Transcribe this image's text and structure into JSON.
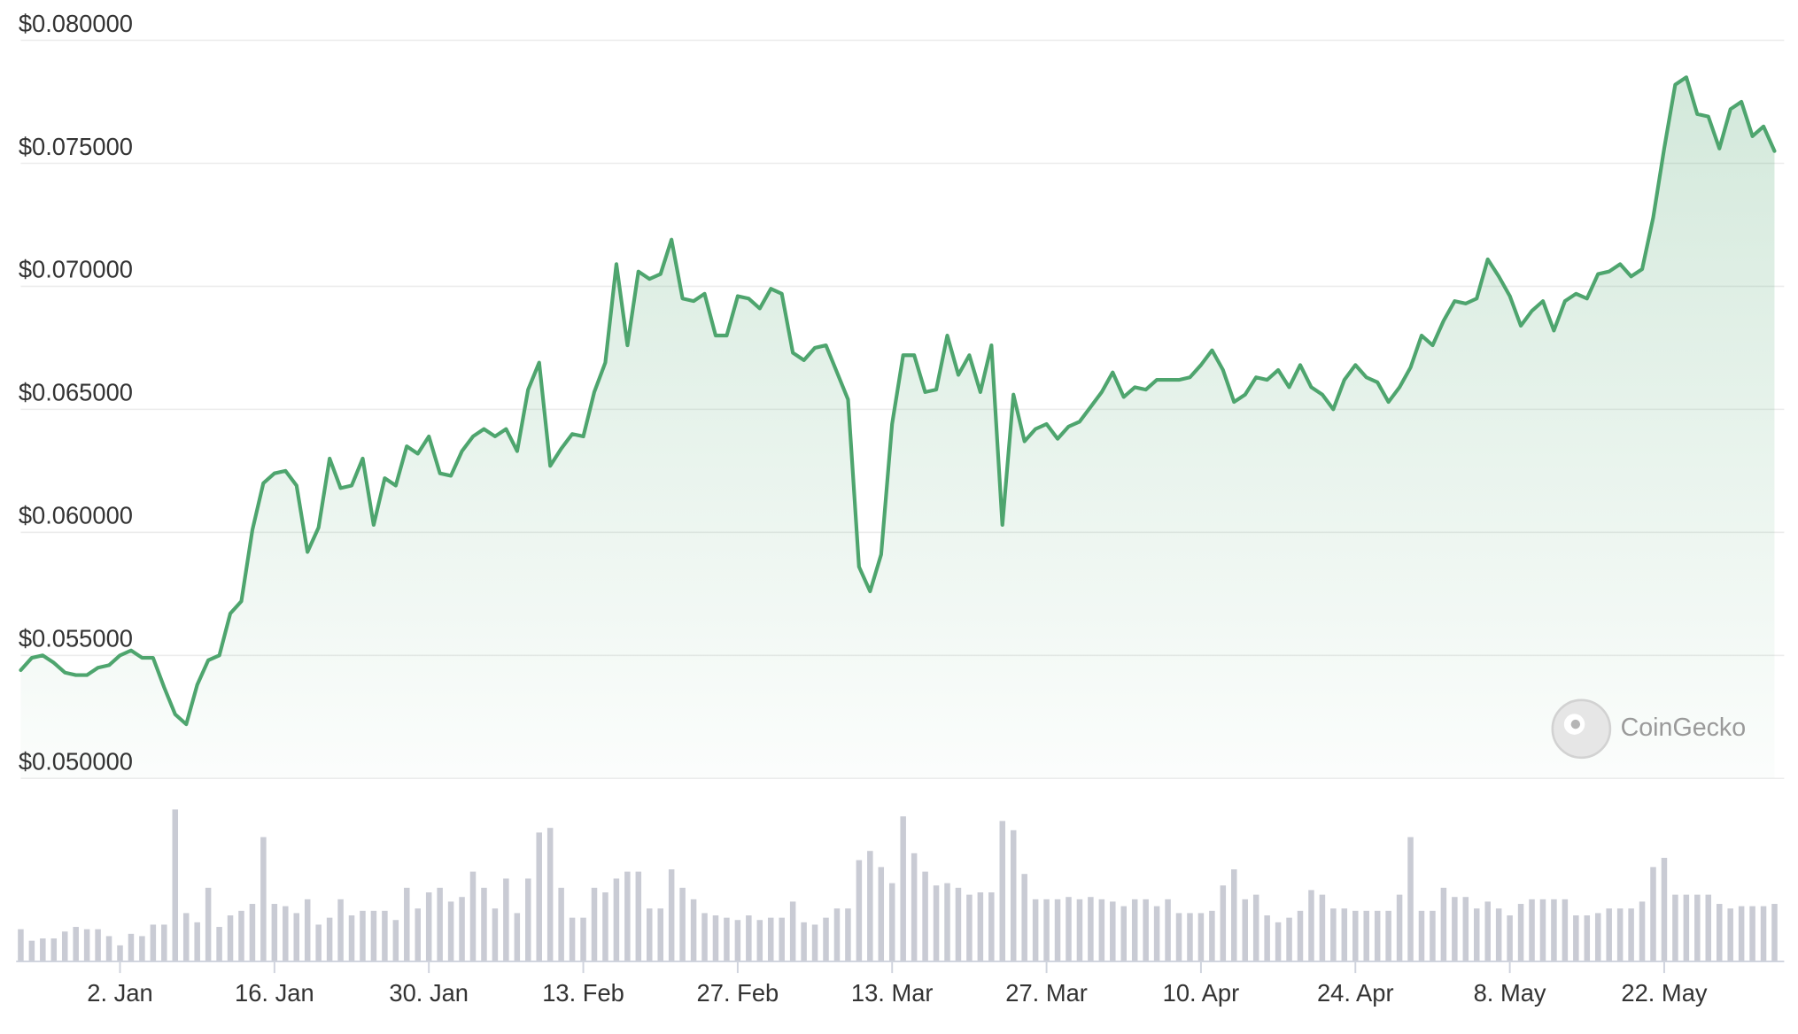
{
  "chart_data": {
    "type": "line",
    "watermark": "CoinGecko",
    "categories": [
      null,
      null,
      null,
      null,
      null,
      null,
      null,
      null,
      null,
      "2. Jan",
      null,
      null,
      null,
      null,
      null,
      null,
      null,
      null,
      null,
      null,
      null,
      null,
      null,
      "16. Jan",
      null,
      null,
      null,
      null,
      null,
      null,
      null,
      null,
      null,
      null,
      null,
      null,
      null,
      "30. Jan",
      null,
      null,
      null,
      null,
      null,
      null,
      null,
      null,
      null,
      null,
      null,
      null,
      null,
      "13. Feb",
      null,
      null,
      null,
      null,
      null,
      null,
      null,
      null,
      null,
      null,
      null,
      null,
      null,
      "27. Feb",
      null,
      null,
      null,
      null,
      null,
      null,
      null,
      null,
      null,
      null,
      null,
      null,
      null,
      "13. Mar",
      null,
      null,
      null,
      null,
      null,
      null,
      null,
      null,
      null,
      null,
      null,
      null,
      null,
      "27. Mar",
      null,
      null,
      null,
      null,
      null,
      null,
      null,
      null,
      null,
      null,
      null,
      null,
      null,
      "10. Apr",
      null,
      null,
      null,
      null,
      null,
      null,
      null,
      null,
      null,
      null,
      null,
      null,
      null,
      "24. Apr",
      null,
      null,
      null,
      null,
      null,
      null,
      null,
      null,
      null,
      null,
      null,
      null,
      null,
      "8. May",
      null,
      null,
      null,
      null,
      null,
      null,
      null,
      null,
      null,
      null,
      null,
      null,
      null,
      "22. May",
      null,
      null,
      null,
      null,
      null,
      null,
      null,
      null,
      null,
      null
    ],
    "series": [
      {
        "color": "#4ea56e",
        "values": [
          0.0544,
          0.0549,
          0.055,
          0.0547,
          0.0543,
          0.0542,
          0.0542,
          0.0545,
          0.0546,
          0.055,
          0.0552,
          0.0549,
          0.0549,
          0.0537,
          0.0526,
          0.0522,
          0.0538,
          0.0548,
          0.055,
          0.0567,
          0.0572,
          0.0601,
          0.062,
          0.0624,
          0.0625,
          0.0619,
          0.0592,
          0.0602,
          0.063,
          0.0618,
          0.0619,
          0.063,
          0.0603,
          0.0622,
          0.0619,
          0.0635,
          0.0632,
          0.0639,
          0.0624,
          0.0623,
          0.0633,
          0.0639,
          0.0642,
          0.0639,
          0.0642,
          0.0633,
          0.0658,
          0.0669,
          0.0627,
          0.0634,
          0.064,
          0.0639,
          0.0657,
          0.0669,
          0.0709,
          0.0676,
          0.0706,
          0.0703,
          0.0705,
          0.0719,
          0.0695,
          0.0694,
          0.0697,
          0.068,
          0.068,
          0.0696,
          0.0695,
          0.0691,
          0.0699,
          0.0697,
          0.0673,
          0.067,
          0.0675,
          0.0676,
          0.0665,
          0.0654,
          0.0586,
          0.0576,
          0.0591,
          0.0644,
          0.0672,
          0.0672,
          0.0657,
          0.0658,
          0.068,
          0.0664,
          0.0672,
          0.0657,
          0.0676,
          0.0603,
          0.0656,
          0.0637,
          0.0642,
          0.0644,
          0.0638,
          0.0643,
          0.0645,
          0.0651,
          0.0657,
          0.0665,
          0.0655,
          0.0659,
          0.0658,
          0.0662,
          0.0662,
          0.0662,
          0.0663,
          0.0668,
          0.0674,
          0.0666,
          0.0653,
          0.0656,
          0.0663,
          0.0662,
          0.0666,
          0.0659,
          0.0668,
          0.0659,
          0.0656,
          0.065,
          0.0662,
          0.0668,
          0.0663,
          0.0661,
          0.0653,
          0.0659,
          0.0667,
          0.068,
          0.0676,
          0.0686,
          0.0694,
          0.0693,
          0.0695,
          0.0711,
          0.0704,
          0.0696,
          0.0684,
          0.069,
          0.0694,
          0.0682,
          0.0694,
          0.0697,
          0.0695,
          0.0705,
          0.0706,
          0.0709,
          0.0704,
          0.0707,
          0.0728,
          0.0756,
          0.0782,
          0.0785,
          0.077,
          0.0769,
          0.0756,
          0.0772,
          0.0775,
          0.0761,
          0.0765,
          0.0755
        ]
      }
    ],
    "volume": {
      "color": "#c9cbd4",
      "ylim": [
        0,
        140
      ],
      "values": [
        28,
        18,
        20,
        20,
        26,
        30,
        28,
        28,
        22,
        14,
        24,
        22,
        32,
        32,
        132,
        42,
        34,
        64,
        30,
        40,
        44,
        50,
        108,
        50,
        48,
        42,
        54,
        32,
        38,
        54,
        40,
        44,
        44,
        44,
        36,
        64,
        46,
        60,
        64,
        52,
        56,
        78,
        64,
        46,
        72,
        42,
        72,
        112,
        116,
        64,
        38,
        38,
        64,
        60,
        72,
        78,
        78,
        46,
        46,
        80,
        64,
        54,
        42,
        40,
        38,
        36,
        40,
        36,
        38,
        38,
        52,
        34,
        32,
        38,
        46,
        46,
        88,
        96,
        82,
        68,
        126,
        94,
        78,
        66,
        68,
        64,
        58,
        60,
        60,
        122,
        114,
        76,
        54,
        54,
        54,
        56,
        54,
        56,
        54,
        52,
        48,
        54,
        54,
        48,
        54,
        42,
        42,
        42,
        44,
        66,
        80,
        54,
        58,
        40,
        34,
        38,
        44,
        62,
        58,
        46,
        46,
        44,
        44,
        44,
        44,
        58,
        108,
        44,
        44,
        64,
        56,
        56,
        46,
        52,
        46,
        40,
        50,
        54,
        54,
        54,
        54,
        40,
        40,
        42,
        46,
        46,
        46,
        52,
        82,
        90,
        58,
        58,
        58,
        58,
        50,
        46,
        48,
        48,
        48,
        50
      ]
    },
    "ylim": [
      0.05,
      0.08
    ],
    "yticks": [
      {
        "value": 0.05,
        "label": "$0.050000"
      },
      {
        "value": 0.055,
        "label": "$0.055000"
      },
      {
        "value": 0.06,
        "label": "$0.060000"
      },
      {
        "value": 0.065,
        "label": "$0.065000"
      },
      {
        "value": 0.07,
        "label": "$0.070000"
      },
      {
        "value": 0.075,
        "label": "$0.075000"
      },
      {
        "value": 0.08,
        "label": "$0.080000"
      }
    ],
    "grid": true
  }
}
